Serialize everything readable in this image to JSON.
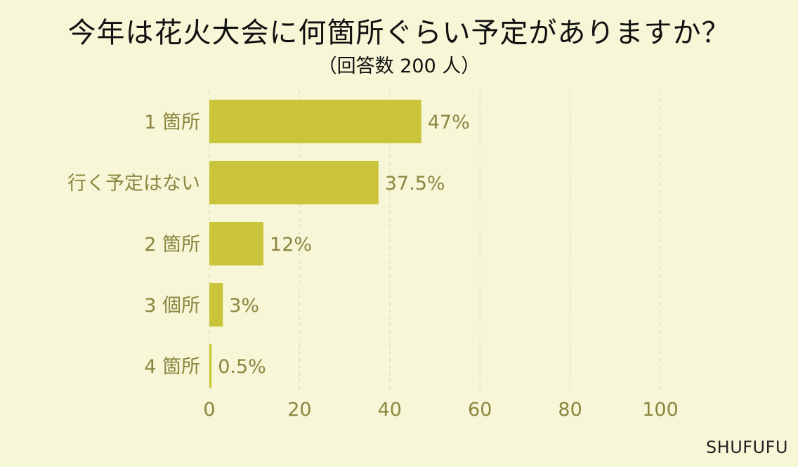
{
  "chart_data": {
    "type": "bar",
    "orientation": "horizontal",
    "title": "今年は花火大会に何箇所ぐらい予定がありますか？",
    "subtitle": "（回答数 200 人）",
    "categories": [
      "1 箇所",
      "行く予定はない",
      "2 箇所",
      "3 個所",
      "4 箇所"
    ],
    "values": [
      47,
      37.5,
      12,
      3,
      0.5
    ],
    "value_labels": [
      "47%",
      "37.5%",
      "12%",
      "3%",
      "0.5%"
    ],
    "xlim": [
      0,
      100
    ],
    "x_ticks": [
      0,
      20,
      40,
      60,
      80,
      100
    ],
    "grid": "vertical dashed",
    "bar_color": "#c9c43a",
    "text_color": "#8b8540"
  },
  "brand": "SHUFUFU"
}
